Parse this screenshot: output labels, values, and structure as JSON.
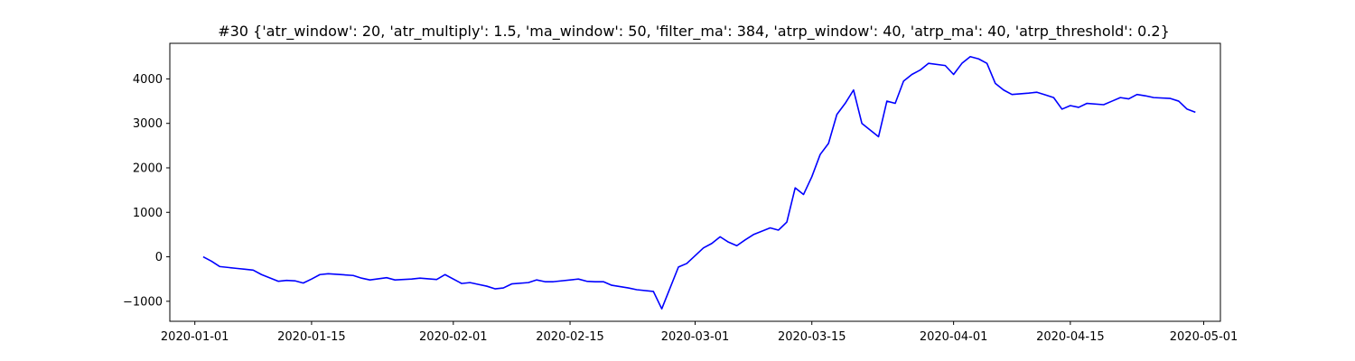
{
  "chart_data": {
    "type": "line",
    "title": "#30 {'atr_window': 20, 'atr_multiply': 1.5, 'ma_window': 50, 'filter_ma': 384, 'atrp_window': 40, 'atrp_ma': 40, 'atrp_threshold': 0.2}",
    "xlabel": "",
    "ylabel": "",
    "xlim": [
      "2019-12-29",
      "2020-05-03"
    ],
    "ylim": [
      -1450,
      4800
    ],
    "x_ticks": [
      "2020-01-01",
      "2020-01-15",
      "2020-02-01",
      "2020-02-15",
      "2020-03-01",
      "2020-03-15",
      "2020-04-01",
      "2020-04-15",
      "2020-05-01"
    ],
    "y_ticks": [
      -1000,
      0,
      1000,
      2000,
      3000,
      4000
    ],
    "grid": false,
    "line_color": "#0000ff",
    "series": [
      {
        "x": [
          "2020-01-02",
          "2020-01-03",
          "2020-01-04",
          "2020-01-06",
          "2020-01-07",
          "2020-01-08",
          "2020-01-09",
          "2020-01-11",
          "2020-01-12",
          "2020-01-13",
          "2020-01-14",
          "2020-01-15",
          "2020-01-16",
          "2020-01-17",
          "2020-01-20",
          "2020-01-21",
          "2020-01-22",
          "2020-01-24",
          "2020-01-25",
          "2020-01-27",
          "2020-01-28",
          "2020-01-30",
          "2020-01-31",
          "2020-02-02",
          "2020-02-03",
          "2020-02-04",
          "2020-02-05",
          "2020-02-06",
          "2020-02-07",
          "2020-02-08",
          "2020-02-10",
          "2020-02-11",
          "2020-02-12",
          "2020-02-13",
          "2020-02-16",
          "2020-02-17",
          "2020-02-18",
          "2020-02-19",
          "2020-02-20",
          "2020-02-22",
          "2020-02-23",
          "2020-02-25",
          "2020-02-26",
          "2020-02-27",
          "2020-02-28",
          "2020-02-29",
          "2020-03-02",
          "2020-03-03",
          "2020-03-04",
          "2020-03-05",
          "2020-03-06",
          "2020-03-07",
          "2020-03-08",
          "2020-03-10",
          "2020-03-11",
          "2020-03-12",
          "2020-03-13",
          "2020-03-14",
          "2020-03-15",
          "2020-03-16",
          "2020-03-17",
          "2020-03-18",
          "2020-03-19",
          "2020-03-20",
          "2020-03-21",
          "2020-03-23",
          "2020-03-24",
          "2020-03-25",
          "2020-03-26",
          "2020-03-27",
          "2020-03-28",
          "2020-03-29",
          "2020-03-31",
          "2020-04-01",
          "2020-04-02",
          "2020-04-03",
          "2020-04-04",
          "2020-04-05",
          "2020-04-06",
          "2020-04-07",
          "2020-04-08",
          "2020-04-10",
          "2020-04-11",
          "2020-04-12",
          "2020-04-13",
          "2020-04-14",
          "2020-04-15",
          "2020-04-16",
          "2020-04-17",
          "2020-04-19",
          "2020-04-20",
          "2020-04-21",
          "2020-04-22",
          "2020-04-23",
          "2020-04-24",
          "2020-04-25",
          "2020-04-27",
          "2020-04-28",
          "2020-04-29",
          "2020-04-30"
        ],
        "y": [
          0,
          -100,
          -220,
          -260,
          -280,
          -300,
          -400,
          -550,
          -530,
          -540,
          -590,
          -500,
          -400,
          -380,
          -420,
          -480,
          -520,
          -470,
          -520,
          -500,
          -480,
          -510,
          -400,
          -600,
          -580,
          -620,
          -660,
          -720,
          -700,
          -610,
          -580,
          -520,
          -560,
          -560,
          -500,
          -550,
          -560,
          -560,
          -640,
          -700,
          -740,
          -780,
          -1170,
          -700,
          -230,
          -150,
          200,
          300,
          450,
          330,
          250,
          380,
          500,
          650,
          600,
          780,
          1550,
          1400,
          1800,
          2300,
          2550,
          3200,
          3450,
          3750,
          3000,
          2700,
          3500,
          3450,
          3950,
          4100,
          4200,
          4350,
          4300,
          4100,
          4350,
          4500,
          4450,
          4350,
          3900,
          3750,
          3650,
          3680,
          3700,
          3640,
          3580,
          3320,
          3400,
          3360,
          3450,
          3420,
          3500,
          3580,
          3550,
          3650,
          3620,
          3580,
          3560,
          3500,
          3320,
          3250
        ]
      }
    ]
  }
}
